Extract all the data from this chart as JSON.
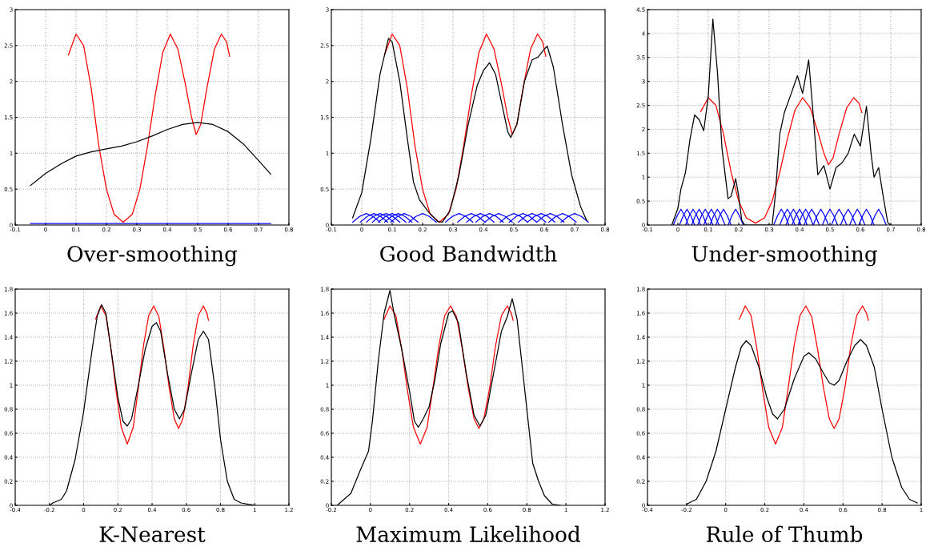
{
  "chart_data": [
    {
      "type": "line",
      "title": "Over-smoothing",
      "xlim": [
        -0.1,
        0.8
      ],
      "ylim": [
        0,
        3
      ],
      "xticks": [
        -0.1,
        0,
        0.1,
        0.2,
        0.3,
        0.4,
        0.5,
        0.6,
        0.7,
        0.8
      ],
      "yticks": [
        0,
        0.5,
        1,
        1.5,
        2,
        2.5,
        3
      ],
      "grid": true,
      "series": [
        {
          "color": "#0000ff",
          "x": [
            -0.05,
            0.1,
            0.3,
            0.5,
            0.74
          ],
          "values": [
            0.02,
            0.02,
            0.02,
            0.02,
            0.02
          ]
        },
        {
          "color": "#ff0000",
          "x": [
            0.075,
            0.1,
            0.125,
            0.15,
            0.175,
            0.2,
            0.225,
            0.255,
            0.285,
            0.31,
            0.335,
            0.36,
            0.385,
            0.41,
            0.435,
            0.46,
            0.48,
            0.495,
            0.51,
            0.53,
            0.555,
            0.578,
            0.595,
            0.605
          ],
          "values": [
            2.37,
            2.66,
            2.5,
            1.9,
            1.1,
            0.5,
            0.15,
            0.04,
            0.15,
            0.5,
            1.1,
            1.8,
            2.4,
            2.66,
            2.45,
            1.95,
            1.5,
            1.26,
            1.4,
            1.9,
            2.45,
            2.66,
            2.55,
            2.35
          ]
        },
        {
          "color": "#000000",
          "x": [
            -0.05,
            0,
            0.05,
            0.1,
            0.15,
            0.2,
            0.25,
            0.3,
            0.35,
            0.4,
            0.45,
            0.5,
            0.55,
            0.6,
            0.65,
            0.7,
            0.74
          ],
          "values": [
            0.55,
            0.72,
            0.85,
            0.96,
            1.02,
            1.06,
            1.1,
            1.16,
            1.24,
            1.33,
            1.4,
            1.43,
            1.4,
            1.3,
            1.13,
            0.9,
            0.71
          ]
        }
      ]
    },
    {
      "type": "line",
      "title": "Good Bandwidth",
      "xlim": [
        -0.1,
        0.8
      ],
      "ylim": [
        0,
        3
      ],
      "xticks": [
        -0.1,
        0,
        0.1,
        0.2,
        0.3,
        0.4,
        0.5,
        0.6,
        0.7,
        0.8
      ],
      "yticks": [
        0,
        0.5,
        1,
        1.5,
        2,
        2.5,
        3
      ],
      "grid": true,
      "series": [
        {
          "color": "#0000ff",
          "x": [
            -0.03,
            -0.007,
            0.015,
            0.037,
            0.06
          ],
          "values": [
            0.04,
            0.12,
            0.16,
            0.12,
            0.04
          ]
        },
        {
          "color": "#0000ff",
          "x": [
            -0.005,
            0.018,
            0.04,
            0.062,
            0.085
          ],
          "values": [
            0.04,
            0.12,
            0.16,
            0.12,
            0.04
          ]
        },
        {
          "color": "#0000ff",
          "x": [
            0.015,
            0.038,
            0.06,
            0.082,
            0.105
          ],
          "values": [
            0.04,
            0.12,
            0.16,
            0.12,
            0.04
          ]
        },
        {
          "color": "#0000ff",
          "x": [
            0.035,
            0.058,
            0.08,
            0.102,
            0.125
          ],
          "values": [
            0.04,
            0.12,
            0.16,
            0.12,
            0.04
          ]
        },
        {
          "color": "#0000ff",
          "x": [
            0.055,
            0.078,
            0.1,
            0.122,
            0.145
          ],
          "values": [
            0.04,
            0.12,
            0.16,
            0.12,
            0.04
          ]
        },
        {
          "color": "#0000ff",
          "x": [
            0.075,
            0.098,
            0.12,
            0.142,
            0.165
          ],
          "values": [
            0.04,
            0.12,
            0.16,
            0.12,
            0.04
          ]
        },
        {
          "color": "#0000ff",
          "x": [
            0.095,
            0.118,
            0.14,
            0.162,
            0.185
          ],
          "values": [
            0.04,
            0.12,
            0.16,
            0.12,
            0.04
          ]
        },
        {
          "color": "#0000ff",
          "x": [
            0.155,
            0.178,
            0.2,
            0.222,
            0.245
          ],
          "values": [
            0.04,
            0.12,
            0.16,
            0.12,
            0.04
          ]
        },
        {
          "color": "#0000ff",
          "x": [
            0.275,
            0.298,
            0.32,
            0.342,
            0.365
          ],
          "values": [
            0.04,
            0.12,
            0.16,
            0.12,
            0.04
          ]
        },
        {
          "color": "#0000ff",
          "x": [
            0.315,
            0.338,
            0.36,
            0.382,
            0.405
          ],
          "values": [
            0.04,
            0.12,
            0.16,
            0.12,
            0.04
          ]
        },
        {
          "color": "#0000ff",
          "x": [
            0.345,
            0.368,
            0.39,
            0.412,
            0.435
          ],
          "values": [
            0.04,
            0.12,
            0.16,
            0.12,
            0.04
          ]
        },
        {
          "color": "#0000ff",
          "x": [
            0.375,
            0.398,
            0.42,
            0.442,
            0.465
          ],
          "values": [
            0.04,
            0.12,
            0.16,
            0.12,
            0.04
          ]
        },
        {
          "color": "#0000ff",
          "x": [
            0.405,
            0.428,
            0.45,
            0.472,
            0.495
          ],
          "values": [
            0.04,
            0.12,
            0.16,
            0.12,
            0.04
          ]
        },
        {
          "color": "#0000ff",
          "x": [
            0.455,
            0.478,
            0.5,
            0.522,
            0.545
          ],
          "values": [
            0.04,
            0.12,
            0.16,
            0.12,
            0.04
          ]
        },
        {
          "color": "#0000ff",
          "x": [
            0.485,
            0.508,
            0.53,
            0.552,
            0.575
          ],
          "values": [
            0.04,
            0.12,
            0.16,
            0.12,
            0.04
          ]
        },
        {
          "color": "#0000ff",
          "x": [
            0.515,
            0.538,
            0.56,
            0.582,
            0.605
          ],
          "values": [
            0.04,
            0.12,
            0.16,
            0.12,
            0.04
          ]
        },
        {
          "color": "#0000ff",
          "x": [
            0.545,
            0.568,
            0.59,
            0.612,
            0.635
          ],
          "values": [
            0.04,
            0.12,
            0.16,
            0.12,
            0.04
          ]
        },
        {
          "color": "#0000ff",
          "x": [
            0.575,
            0.598,
            0.62,
            0.642,
            0.665
          ],
          "values": [
            0.04,
            0.12,
            0.16,
            0.12,
            0.04
          ]
        },
        {
          "color": "#0000ff",
          "x": [
            0.615,
            0.638,
            0.66,
            0.682,
            0.705
          ],
          "values": [
            0.04,
            0.12,
            0.16,
            0.12,
            0.04
          ]
        },
        {
          "color": "#0000ff",
          "x": [
            0.655,
            0.678,
            0.7,
            0.722,
            0.745
          ],
          "values": [
            0.04,
            0.12,
            0.16,
            0.12,
            0.04
          ]
        },
        {
          "color": "#ff0000",
          "x": [
            0.075,
            0.1,
            0.125,
            0.15,
            0.175,
            0.2,
            0.225,
            0.255,
            0.285,
            0.31,
            0.335,
            0.36,
            0.385,
            0.41,
            0.435,
            0.46,
            0.48,
            0.495,
            0.51,
            0.53,
            0.555,
            0.578,
            0.595,
            0.605
          ],
          "values": [
            2.37,
            2.66,
            2.5,
            1.9,
            1.1,
            0.5,
            0.15,
            0.04,
            0.15,
            0.5,
            1.1,
            1.8,
            2.4,
            2.66,
            2.45,
            1.95,
            1.5,
            1.26,
            1.4,
            1.9,
            2.45,
            2.66,
            2.55,
            2.35
          ]
        },
        {
          "color": "#000000",
          "x": [
            -0.03,
            0,
            0.03,
            0.06,
            0.088,
            0.1,
            0.125,
            0.15,
            0.17,
            0.19,
            0.22,
            0.25,
            0.265,
            0.29,
            0.32,
            0.35,
            0.38,
            0.4,
            0.42,
            0.44,
            0.46,
            0.48,
            0.49,
            0.51,
            0.535,
            0.56,
            0.58,
            0.6,
            0.61,
            0.63,
            0.66,
            0.69,
            0.72,
            0.74
          ],
          "values": [
            0.1,
            0.45,
            1.2,
            2.1,
            2.6,
            2.55,
            2.0,
            1.2,
            0.6,
            0.35,
            0.18,
            0.05,
            0.04,
            0.2,
            0.7,
            1.4,
            1.95,
            2.15,
            2.26,
            2.1,
            1.7,
            1.3,
            1.22,
            1.4,
            2.0,
            2.3,
            2.34,
            2.45,
            2.49,
            2.2,
            1.4,
            0.7,
            0.25,
            0.06
          ]
        }
      ]
    },
    {
      "type": "line",
      "title": "Under-smoothing",
      "xlim": [
        -0.1,
        0.8
      ],
      "ylim": [
        0,
        4.5
      ],
      "xticks": [
        -0.1,
        0,
        0.1,
        0.2,
        0.3,
        0.4,
        0.5,
        0.6,
        0.7,
        0.8
      ],
      "yticks": [
        0,
        0.5,
        1,
        1.5,
        2,
        2.5,
        3,
        3.5,
        4,
        4.5
      ],
      "grid": true,
      "series": [
        {
          "color": "#0000ff",
          "x": [
            -0.015,
            -0.002,
            0.01,
            0.022,
            0.035
          ],
          "values": [
            0,
            0.2,
            0.33,
            0.2,
            0
          ]
        },
        {
          "color": "#0000ff",
          "x": [
            0.005,
            0.018,
            0.03,
            0.042,
            0.055
          ],
          "values": [
            0,
            0.2,
            0.33,
            0.2,
            0
          ]
        },
        {
          "color": "#0000ff",
          "x": [
            0.025,
            0.038,
            0.05,
            0.062,
            0.075
          ],
          "values": [
            0,
            0.2,
            0.33,
            0.2,
            0
          ]
        },
        {
          "color": "#0000ff",
          "x": [
            0.045,
            0.058,
            0.07,
            0.082,
            0.095
          ],
          "values": [
            0,
            0.2,
            0.33,
            0.2,
            0
          ]
        },
        {
          "color": "#0000ff",
          "x": [
            0.065,
            0.078,
            0.09,
            0.102,
            0.115
          ],
          "values": [
            0,
            0.2,
            0.33,
            0.2,
            0
          ]
        },
        {
          "color": "#0000ff",
          "x": [
            0.085,
            0.098,
            0.11,
            0.122,
            0.135
          ],
          "values": [
            0,
            0.2,
            0.33,
            0.2,
            0
          ]
        },
        {
          "color": "#0000ff",
          "x": [
            0.105,
            0.118,
            0.13,
            0.142,
            0.155
          ],
          "values": [
            0,
            0.2,
            0.33,
            0.2,
            0
          ]
        },
        {
          "color": "#0000ff",
          "x": [
            0.125,
            0.138,
            0.15,
            0.162,
            0.175
          ],
          "values": [
            0,
            0.2,
            0.33,
            0.2,
            0
          ]
        },
        {
          "color": "#0000ff",
          "x": [
            0.165,
            0.178,
            0.19,
            0.202,
            0.215
          ],
          "values": [
            0,
            0.2,
            0.33,
            0.2,
            0
          ]
        },
        {
          "color": "#0000ff",
          "x": [
            0.315,
            0.328,
            0.34,
            0.352,
            0.365
          ],
          "values": [
            0,
            0.2,
            0.33,
            0.2,
            0
          ]
        },
        {
          "color": "#0000ff",
          "x": [
            0.335,
            0.348,
            0.36,
            0.372,
            0.385
          ],
          "values": [
            0,
            0.2,
            0.33,
            0.2,
            0
          ]
        },
        {
          "color": "#0000ff",
          "x": [
            0.355,
            0.368,
            0.38,
            0.392,
            0.405
          ],
          "values": [
            0,
            0.2,
            0.33,
            0.2,
            0
          ]
        },
        {
          "color": "#0000ff",
          "x": [
            0.375,
            0.388,
            0.4,
            0.412,
            0.425
          ],
          "values": [
            0,
            0.2,
            0.33,
            0.2,
            0
          ]
        },
        {
          "color": "#0000ff",
          "x": [
            0.395,
            0.408,
            0.42,
            0.432,
            0.445
          ],
          "values": [
            0,
            0.2,
            0.33,
            0.2,
            0
          ]
        },
        {
          "color": "#0000ff",
          "x": [
            0.415,
            0.428,
            0.44,
            0.452,
            0.465
          ],
          "values": [
            0,
            0.2,
            0.33,
            0.2,
            0
          ]
        },
        {
          "color": "#0000ff",
          "x": [
            0.445,
            0.458,
            0.47,
            0.482,
            0.495
          ],
          "values": [
            0,
            0.2,
            0.33,
            0.2,
            0
          ]
        },
        {
          "color": "#0000ff",
          "x": [
            0.475,
            0.488,
            0.5,
            0.512,
            0.525
          ],
          "values": [
            0,
            0.2,
            0.33,
            0.2,
            0
          ]
        },
        {
          "color": "#0000ff",
          "x": [
            0.505,
            0.518,
            0.53,
            0.542,
            0.555
          ],
          "values": [
            0,
            0.2,
            0.33,
            0.2,
            0
          ]
        },
        {
          "color": "#0000ff",
          "x": [
            0.535,
            0.548,
            0.56,
            0.572,
            0.585
          ],
          "values": [
            0,
            0.2,
            0.33,
            0.2,
            0
          ]
        },
        {
          "color": "#0000ff",
          "x": [
            0.565,
            0.578,
            0.59,
            0.602,
            0.615
          ],
          "values": [
            0,
            0.2,
            0.33,
            0.2,
            0
          ]
        },
        {
          "color": "#0000ff",
          "x": [
            0.595,
            0.608,
            0.62,
            0.632,
            0.645
          ],
          "values": [
            0,
            0.2,
            0.33,
            0.2,
            0
          ]
        },
        {
          "color": "#0000ff",
          "x": [
            0.635,
            0.648,
            0.66,
            0.672,
            0.685
          ],
          "values": [
            0,
            0.2,
            0.33,
            0.2,
            0
          ]
        },
        {
          "color": "#ff0000",
          "x": [
            0.075,
            0.1,
            0.125,
            0.15,
            0.175,
            0.2,
            0.225,
            0.255,
            0.285,
            0.31,
            0.335,
            0.36,
            0.385,
            0.41,
            0.435,
            0.46,
            0.48,
            0.495,
            0.51,
            0.53,
            0.555,
            0.578,
            0.595,
            0.605
          ],
          "values": [
            2.37,
            2.66,
            2.5,
            1.9,
            1.1,
            0.5,
            0.15,
            0.04,
            0.15,
            0.5,
            1.1,
            1.8,
            2.4,
            2.66,
            2.45,
            1.95,
            1.5,
            1.26,
            1.4,
            1.9,
            2.45,
            2.66,
            2.55,
            2.35
          ]
        },
        {
          "color": "#000000",
          "x": [
            -0.02,
            0,
            0.01,
            0.025,
            0.04,
            0.055,
            0.07,
            0.085,
            0.1,
            0.115,
            0.13,
            0.145,
            0.165,
            0.175,
            0.19,
            0.2,
            0.21,
            0.22,
            0.31,
            0.32,
            0.335,
            0.35,
            0.37,
            0.393,
            0.41,
            0.43,
            0.445,
            0.46,
            0.48,
            0.5,
            0.52,
            0.54,
            0.56,
            0.58,
            0.6,
            0.62,
            0.635,
            0.645,
            0.66,
            0.675,
            0.69,
            0.7
          ],
          "values": [
            0,
            0.35,
            0.75,
            1.1,
            1.8,
            2.3,
            2.2,
            1.97,
            2.7,
            4.3,
            3.2,
            1.6,
            0.55,
            0.6,
            0.97,
            0.6,
            0.1,
            0,
            0,
            0.6,
            1.9,
            2.35,
            2.7,
            3.12,
            2.75,
            3.45,
            2.3,
            1.05,
            1.24,
            0.75,
            1.2,
            1.3,
            1.5,
            1.9,
            1.65,
            2.48,
            1.5,
            1.0,
            1.2,
            0.6,
            0.05,
            0
          ]
        }
      ]
    },
    {
      "type": "line",
      "title": "K-Nearest",
      "xlim": [
        -0.4,
        1.2
      ],
      "ylim": [
        0,
        1.8
      ],
      "xticks": [
        -0.4,
        -0.2,
        0,
        0.2,
        0.4,
        0.6,
        0.8,
        1,
        1.2
      ],
      "yticks": [
        0,
        0.2,
        0.4,
        0.6,
        0.8,
        1,
        1.2,
        1.4,
        1.6,
        1.8
      ],
      "grid": true,
      "series": [
        {
          "color": "#ff0000",
          "x": [
            0.07,
            0.1,
            0.13,
            0.16,
            0.19,
            0.22,
            0.255,
            0.29,
            0.32,
            0.35,
            0.38,
            0.41,
            0.44,
            0.47,
            0.5,
            0.53,
            0.555,
            0.58,
            0.61,
            0.64,
            0.67,
            0.7,
            0.72,
            0.73
          ],
          "values": [
            1.55,
            1.66,
            1.58,
            1.3,
            0.95,
            0.65,
            0.51,
            0.65,
            0.98,
            1.33,
            1.58,
            1.66,
            1.57,
            1.3,
            0.98,
            0.72,
            0.64,
            0.72,
            0.98,
            1.33,
            1.58,
            1.66,
            1.6,
            1.54
          ]
        },
        {
          "color": "#000000",
          "x": [
            -0.2,
            -0.18,
            -0.13,
            -0.1,
            -0.05,
            0,
            0.05,
            0.08,
            0.105,
            0.13,
            0.16,
            0.2,
            0.23,
            0.255,
            0.28,
            0.32,
            0.36,
            0.4,
            0.425,
            0.45,
            0.49,
            0.53,
            0.56,
            0.59,
            0.63,
            0.67,
            0.7,
            0.73,
            0.77,
            0.8,
            0.84,
            0.88,
            0.92,
            1.0
          ],
          "values": [
            0,
            0.02,
            0.05,
            0.12,
            0.38,
            0.78,
            1.3,
            1.58,
            1.67,
            1.6,
            1.3,
            0.9,
            0.7,
            0.66,
            0.72,
            1.0,
            1.3,
            1.49,
            1.52,
            1.45,
            1.1,
            0.8,
            0.72,
            0.8,
            1.1,
            1.38,
            1.45,
            1.38,
            0.95,
            0.55,
            0.2,
            0.05,
            0.02,
            0
          ]
        }
      ]
    },
    {
      "type": "line",
      "title": "Maximum Likelihood",
      "xlim": [
        -0.2,
        1.2
      ],
      "ylim": [
        0,
        1.8
      ],
      "xticks": [
        -0.2,
        0,
        0.2,
        0.4,
        0.6,
        0.8,
        1,
        1.2
      ],
      "yticks": [
        0,
        0.2,
        0.4,
        0.6,
        0.8,
        1,
        1.2,
        1.4,
        1.6,
        1.8
      ],
      "grid": true,
      "series": [
        {
          "color": "#ff0000",
          "x": [
            0.07,
            0.1,
            0.13,
            0.16,
            0.19,
            0.22,
            0.255,
            0.29,
            0.32,
            0.35,
            0.38,
            0.41,
            0.44,
            0.47,
            0.5,
            0.53,
            0.555,
            0.58,
            0.61,
            0.64,
            0.67,
            0.7,
            0.72,
            0.73
          ],
          "values": [
            1.55,
            1.66,
            1.58,
            1.3,
            0.95,
            0.65,
            0.51,
            0.65,
            0.98,
            1.33,
            1.58,
            1.66,
            1.57,
            1.3,
            0.98,
            0.72,
            0.64,
            0.72,
            0.98,
            1.33,
            1.58,
            1.66,
            1.6,
            1.54
          ]
        },
        {
          "color": "#000000",
          "x": [
            -0.17,
            -0.1,
            -0.05,
            -0.01,
            0.01,
            0.04,
            0.07,
            0.1,
            0.12,
            0.16,
            0.2,
            0.225,
            0.245,
            0.27,
            0.3,
            0.33,
            0.36,
            0.4,
            0.42,
            0.45,
            0.49,
            0.53,
            0.56,
            0.59,
            0.63,
            0.67,
            0.7,
            0.725,
            0.75,
            0.79,
            0.83,
            0.86,
            0.89,
            0.93,
            0.97
          ],
          "values": [
            0,
            0.1,
            0.3,
            0.45,
            0.7,
            1.2,
            1.6,
            1.79,
            1.6,
            1.3,
            0.95,
            0.7,
            0.65,
            0.72,
            0.82,
            1.05,
            1.35,
            1.6,
            1.62,
            1.52,
            1.1,
            0.75,
            0.66,
            0.75,
            1.1,
            1.45,
            1.57,
            1.72,
            1.55,
            0.95,
            0.35,
            0.2,
            0.08,
            0.01,
            0
          ]
        }
      ]
    },
    {
      "type": "line",
      "title": "Rule of Thumb",
      "xlim": [
        -0.4,
        1
      ],
      "ylim": [
        0,
        1.8
      ],
      "xticks": [
        -0.4,
        -0.2,
        0,
        0.2,
        0.4,
        0.6,
        0.8,
        1
      ],
      "yticks": [
        0,
        0.2,
        0.4,
        0.6,
        0.8,
        1,
        1.2,
        1.4,
        1.6,
        1.8
      ],
      "grid": true,
      "series": [
        {
          "color": "#ff0000",
          "x": [
            0.07,
            0.1,
            0.13,
            0.16,
            0.19,
            0.22,
            0.255,
            0.29,
            0.32,
            0.35,
            0.38,
            0.41,
            0.44,
            0.47,
            0.5,
            0.53,
            0.555,
            0.58,
            0.61,
            0.64,
            0.67,
            0.7,
            0.72,
            0.73
          ],
          "values": [
            1.55,
            1.66,
            1.58,
            1.3,
            0.95,
            0.65,
            0.51,
            0.65,
            0.98,
            1.33,
            1.58,
            1.66,
            1.57,
            1.3,
            0.98,
            0.72,
            0.64,
            0.72,
            0.98,
            1.33,
            1.58,
            1.66,
            1.6,
            1.54
          ]
        },
        {
          "color": "#000000",
          "x": [
            -0.2,
            -0.15,
            -0.1,
            -0.05,
            0,
            0.05,
            0.08,
            0.105,
            0.13,
            0.17,
            0.21,
            0.24,
            0.265,
            0.3,
            0.35,
            0.4,
            0.425,
            0.46,
            0.5,
            0.53,
            0.555,
            0.58,
            0.62,
            0.66,
            0.69,
            0.72,
            0.76,
            0.8,
            0.85,
            0.9,
            0.94,
            0.98
          ],
          "values": [
            0.01,
            0.05,
            0.2,
            0.45,
            0.8,
            1.15,
            1.32,
            1.37,
            1.33,
            1.15,
            0.9,
            0.76,
            0.72,
            0.8,
            1.05,
            1.24,
            1.27,
            1.22,
            1.1,
            1.02,
            1.0,
            1.04,
            1.2,
            1.33,
            1.38,
            1.33,
            1.15,
            0.8,
            0.4,
            0.15,
            0.05,
            0.02
          ]
        }
      ]
    }
  ]
}
